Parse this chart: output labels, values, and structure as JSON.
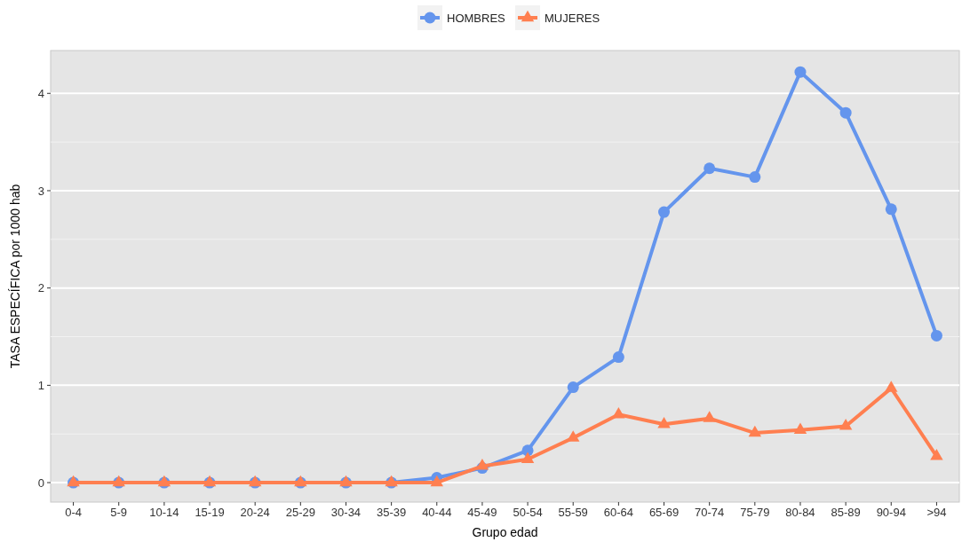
{
  "chart_data": {
    "type": "line",
    "xlabel": "Grupo edad",
    "ylabel": "TASA ESPECÍFICA por 1000 hab",
    "categories": [
      "0-4",
      "5-9",
      "10-14",
      "15-19",
      "20-24",
      "25-29",
      "30-34",
      "35-39",
      "40-44",
      "45-49",
      "50-54",
      "55-59",
      "60-64",
      "65-69",
      "70-74",
      "75-79",
      "80-84",
      "85-89",
      "90-94",
      ">94"
    ],
    "series": [
      {
        "name": "HOMBRES",
        "color": "#6495ed",
        "marker": "circle",
        "values": [
          0,
          0,
          0,
          0,
          0,
          0,
          0,
          0,
          0.05,
          0.15,
          0.33,
          0.98,
          1.29,
          2.78,
          3.23,
          3.14,
          4.22,
          3.8,
          2.81,
          1.51
        ]
      },
      {
        "name": "MUJERES",
        "color": "#ff7f50",
        "marker": "triangle",
        "values": [
          0,
          0,
          0,
          0,
          0,
          0,
          0,
          0,
          0,
          0.17,
          0.24,
          0.46,
          0.7,
          0.6,
          0.66,
          0.51,
          0.54,
          0.58,
          0.97,
          0.27
        ]
      }
    ],
    "ylim": [
      -0.2,
      4.44
    ],
    "yticks": [
      0,
      1,
      2,
      3,
      4
    ],
    "grid": "y",
    "legend": "top",
    "line_style": "solid"
  }
}
